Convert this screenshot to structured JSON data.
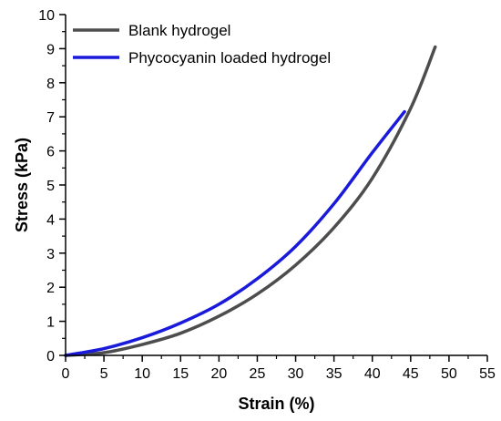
{
  "chart_data": {
    "type": "line",
    "title": "",
    "xlabel": "Strain (%)",
    "ylabel": "Stress (kPa)",
    "xlim": [
      0,
      55
    ],
    "ylim": [
      0,
      10
    ],
    "x_ticks": [
      0,
      5,
      10,
      15,
      20,
      25,
      30,
      35,
      40,
      45,
      50,
      55
    ],
    "y_ticks": [
      0,
      1,
      2,
      3,
      4,
      5,
      6,
      7,
      8,
      9,
      10
    ],
    "grid": false,
    "legend_position": "top-left",
    "series": [
      {
        "name": "Blank hydrogel",
        "color": "#4d4d4d",
        "x": [
          0,
          5,
          10,
          15,
          20,
          25,
          30,
          35,
          40,
          45,
          48.2
        ],
        "y": [
          0,
          0.08,
          0.32,
          0.65,
          1.15,
          1.8,
          2.65,
          3.75,
          5.2,
          7.25,
          9.05
        ]
      },
      {
        "name": "Phycocyanin loaded hydrogel",
        "color": "#1a1adb",
        "x": [
          0,
          5,
          10,
          15,
          20,
          25,
          30,
          35,
          40,
          44.2
        ],
        "y": [
          0,
          0.2,
          0.52,
          0.95,
          1.5,
          2.25,
          3.2,
          4.45,
          5.95,
          7.15
        ]
      }
    ]
  }
}
